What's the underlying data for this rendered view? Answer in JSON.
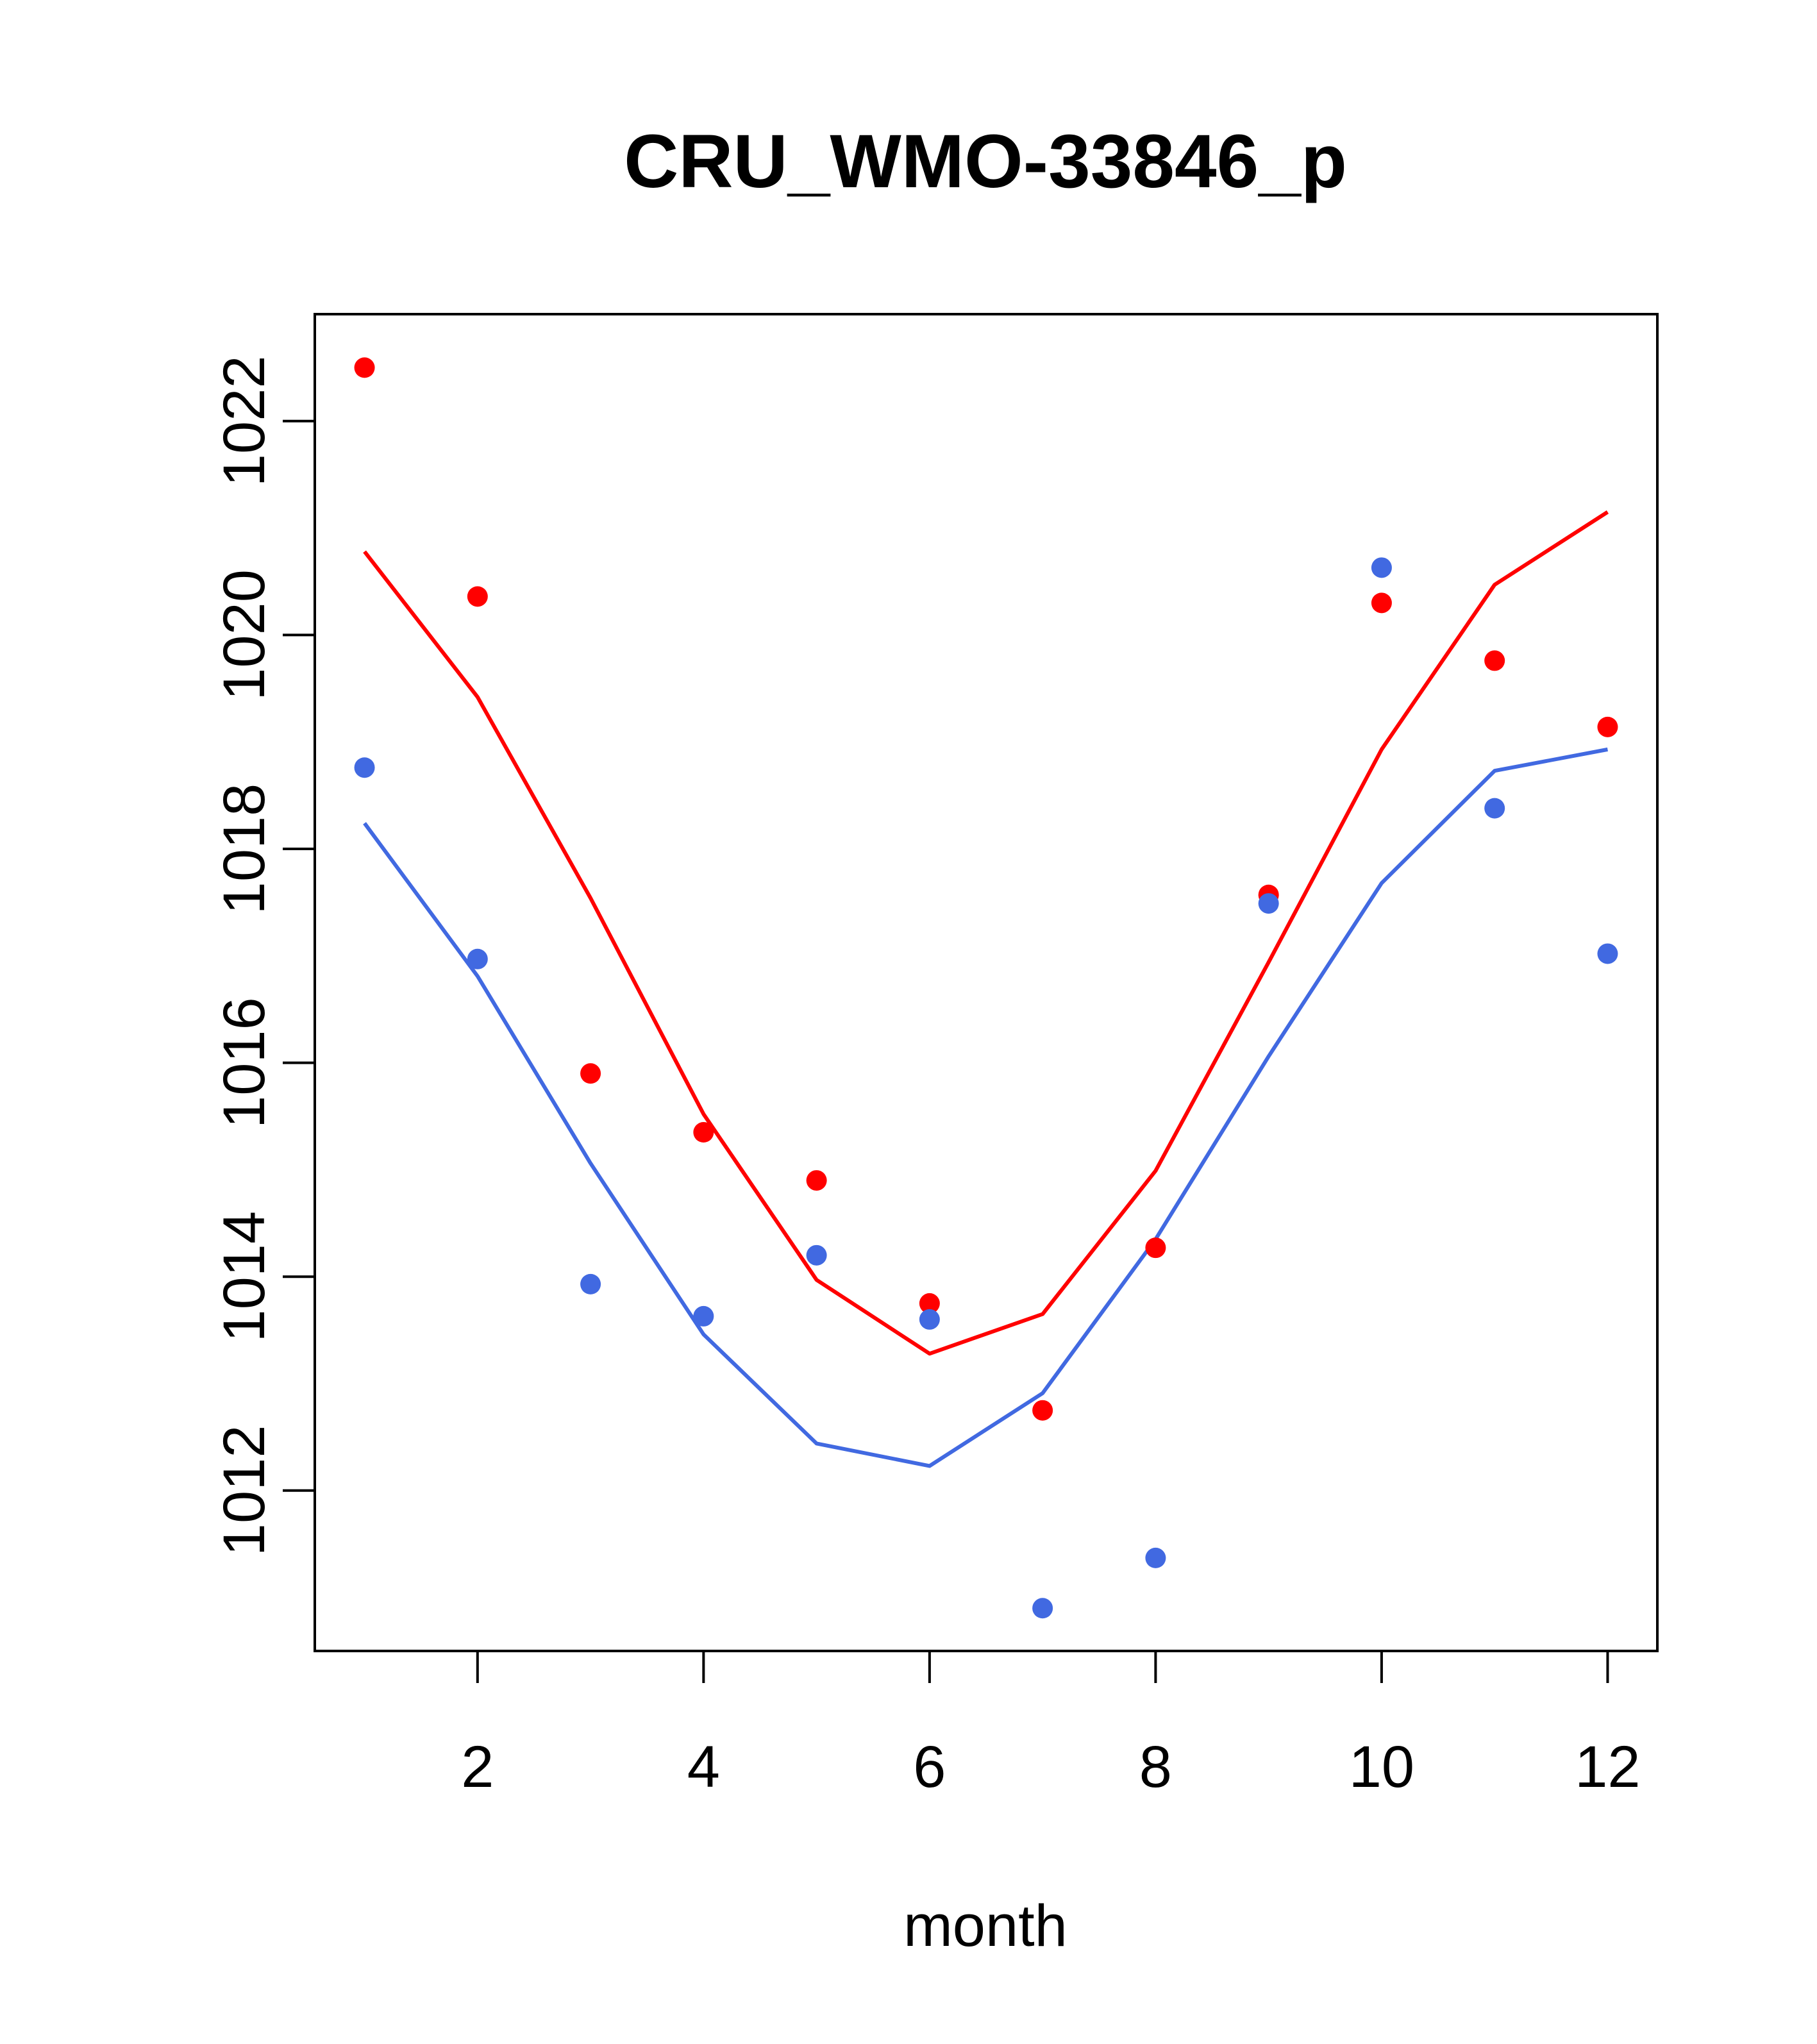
{
  "chart_data": {
    "type": "line",
    "title": "CRU_WMO-33846_p",
    "xlabel": "month",
    "ylabel": "",
    "xlim": [
      0.56,
      12.44
    ],
    "ylim": [
      1010.5,
      1023.0
    ],
    "x_ticks": [
      2,
      4,
      6,
      8,
      10,
      12
    ],
    "y_ticks": [
      1012,
      1014,
      1016,
      1018,
      1020,
      1022
    ],
    "grid": false,
    "legend": "none",
    "series": [
      {
        "name": "red-points",
        "kind": "scatter",
        "color": "#ff0000",
        "x": [
          1,
          2,
          3,
          4,
          5,
          6,
          7,
          8,
          9,
          10,
          11,
          12
        ],
        "values": [
          1022.5,
          1020.36,
          1015.9,
          1015.35,
          1014.9,
          1013.75,
          1012.75,
          1014.27,
          1017.57,
          1020.3,
          1019.76,
          1019.14
        ]
      },
      {
        "name": "red-line",
        "kind": "line",
        "color": "#ff0000",
        "x": [
          1,
          2,
          3,
          4,
          5,
          6,
          7,
          8,
          9,
          10,
          11,
          12
        ],
        "values": [
          1020.78,
          1019.42,
          1017.54,
          1015.52,
          1013.97,
          1013.28,
          1013.65,
          1014.99,
          1016.94,
          1018.93,
          1020.47,
          1021.15
        ]
      },
      {
        "name": "blue-points",
        "kind": "scatter",
        "color": "#4169e1",
        "x": [
          1,
          2,
          3,
          4,
          5,
          6,
          7,
          8,
          9,
          10,
          11,
          12
        ],
        "values": [
          1018.76,
          1016.97,
          1013.93,
          1013.63,
          1014.2,
          1013.6,
          1010.9,
          1011.37,
          1017.49,
          1020.63,
          1018.38,
          1017.02
        ]
      },
      {
        "name": "blue-line",
        "kind": "line",
        "color": "#4169e1",
        "x": [
          1,
          2,
          3,
          4,
          5,
          6,
          7,
          8,
          9,
          10,
          11,
          12
        ],
        "values": [
          1018.24,
          1016.81,
          1015.06,
          1013.46,
          1012.44,
          1012.23,
          1012.91,
          1014.35,
          1016.06,
          1017.68,
          1018.73,
          1018.93
        ]
      }
    ]
  }
}
